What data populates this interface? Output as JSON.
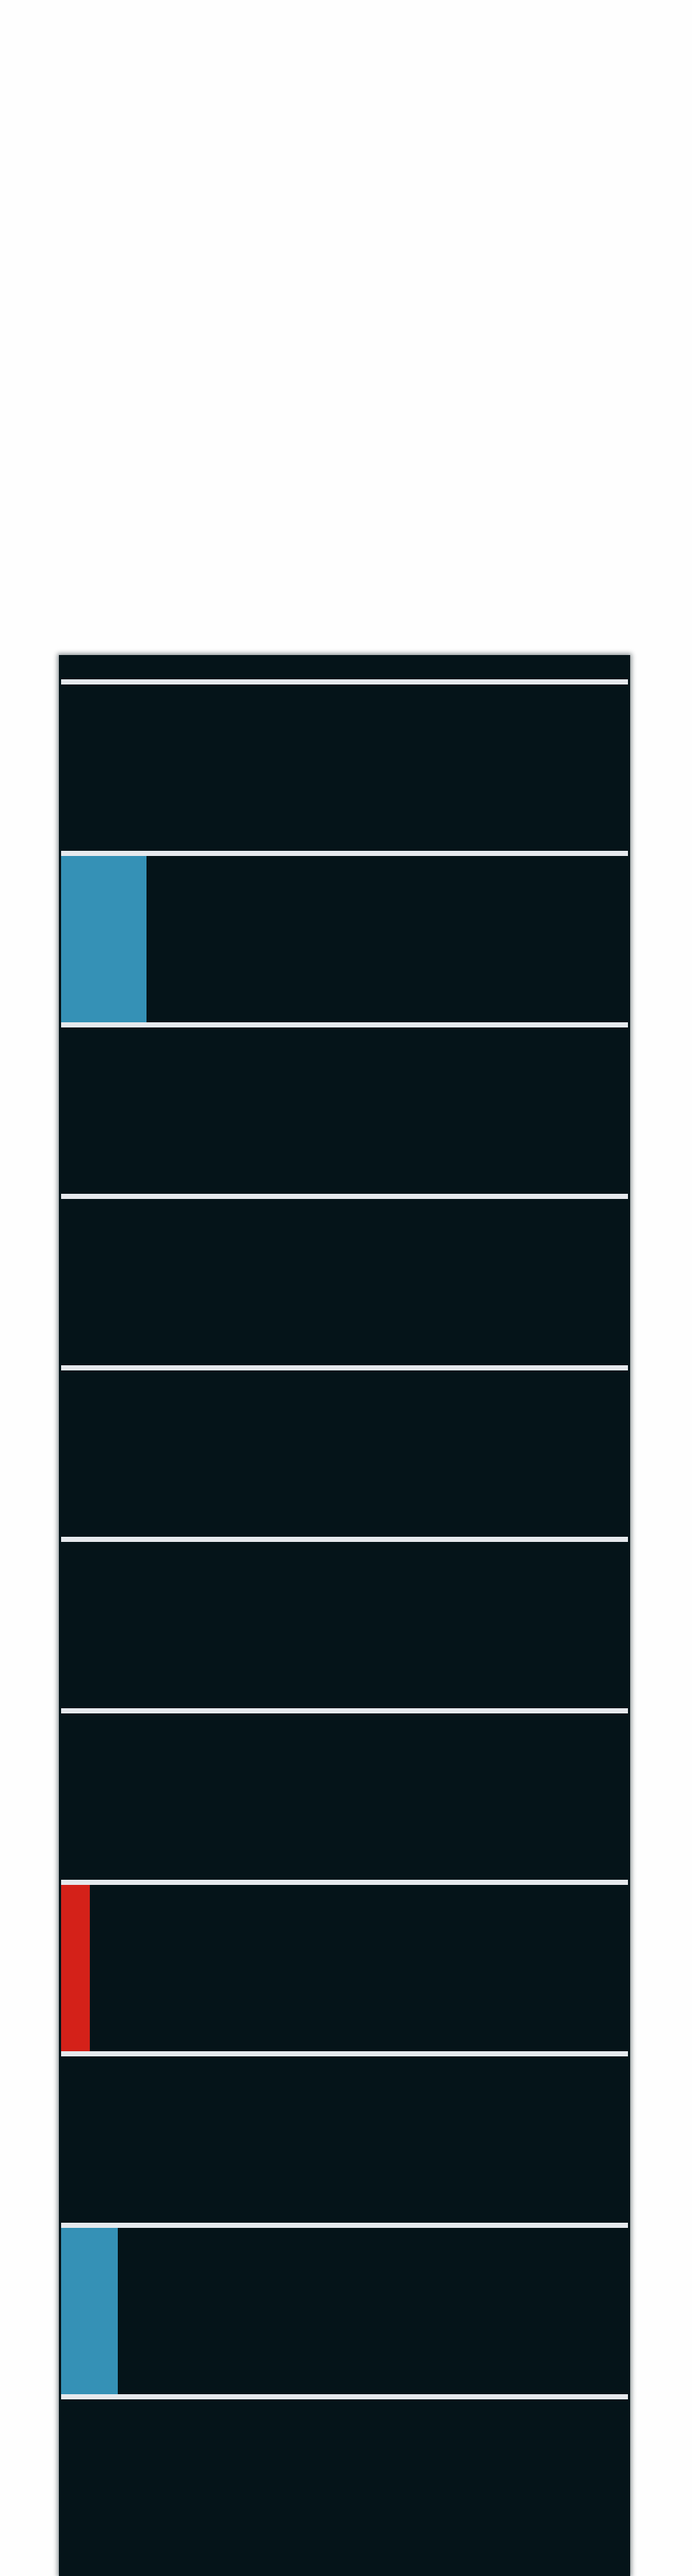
{
  "colors": {
    "background": "#fefefe",
    "panel": "#051419",
    "divider": "#e6e9ed",
    "accent_blue": "#3591b6",
    "accent_red": "#d42119"
  },
  "rows": [
    {
      "fill": 0.0,
      "color": ""
    },
    {
      "fill": 0.15,
      "color": "#3591b6"
    },
    {
      "fill": 0.0,
      "color": ""
    },
    {
      "fill": 0.0,
      "color": ""
    },
    {
      "fill": 0.0,
      "color": ""
    },
    {
      "fill": 0.0,
      "color": ""
    },
    {
      "fill": 0.0,
      "color": ""
    },
    {
      "fill": 0.05,
      "color": "#d42119"
    },
    {
      "fill": 0.0,
      "color": ""
    },
    {
      "fill": 0.1,
      "color": "#3591b6"
    },
    {
      "fill": 0.0,
      "color": ""
    }
  ]
}
